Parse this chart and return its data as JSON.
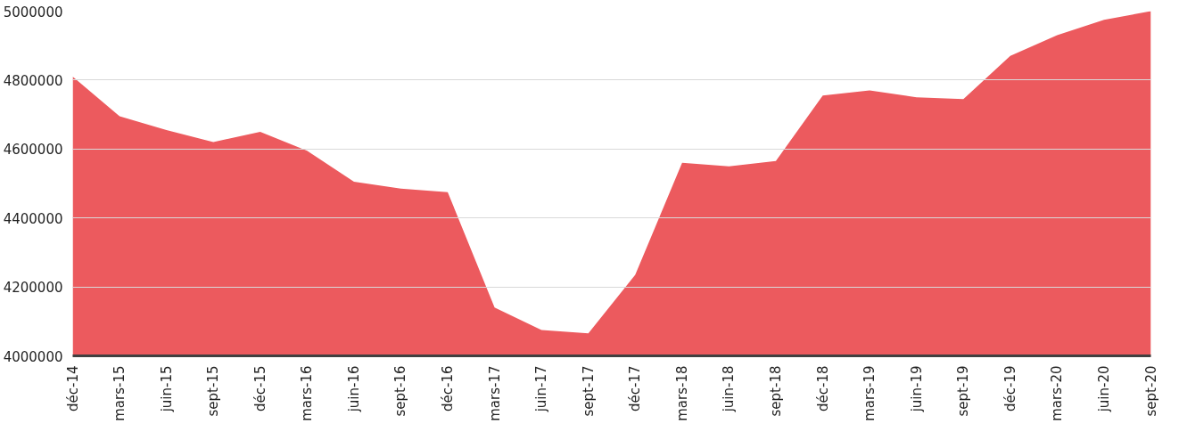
{
  "chart_data": {
    "type": "area",
    "categories": [
      "déc-14",
      "mars-15",
      "juin-15",
      "sept-15",
      "déc-15",
      "mars-16",
      "juin-16",
      "sept-16",
      "déc-16",
      "mars-17",
      "juin-17",
      "sept-17",
      "déc-17",
      "mars-18",
      "juin-18",
      "sept-18",
      "déc-18",
      "mars-19",
      "juin-19",
      "sept-19",
      "déc-19",
      "mars-20",
      "juin-20",
      "sept-20"
    ],
    "series": [
      {
        "color": "#ec5a5e",
        "values": [
          4810000,
          4695000,
          4655000,
          4620000,
          4650000,
          4595000,
          4505000,
          4485000,
          4475000,
          4140000,
          4075000,
          4065000,
          4235000,
          4560000,
          4550000,
          4565000,
          4755000,
          4770000,
          4750000,
          4745000,
          4870000,
          4930000,
          4975000,
          5000000
        ]
      }
    ],
    "ylim": [
      4000000,
      5000000
    ],
    "yticks": [
      4000000,
      4200000,
      4400000,
      4600000,
      4800000,
      5000000
    ],
    "grid": "y"
  }
}
